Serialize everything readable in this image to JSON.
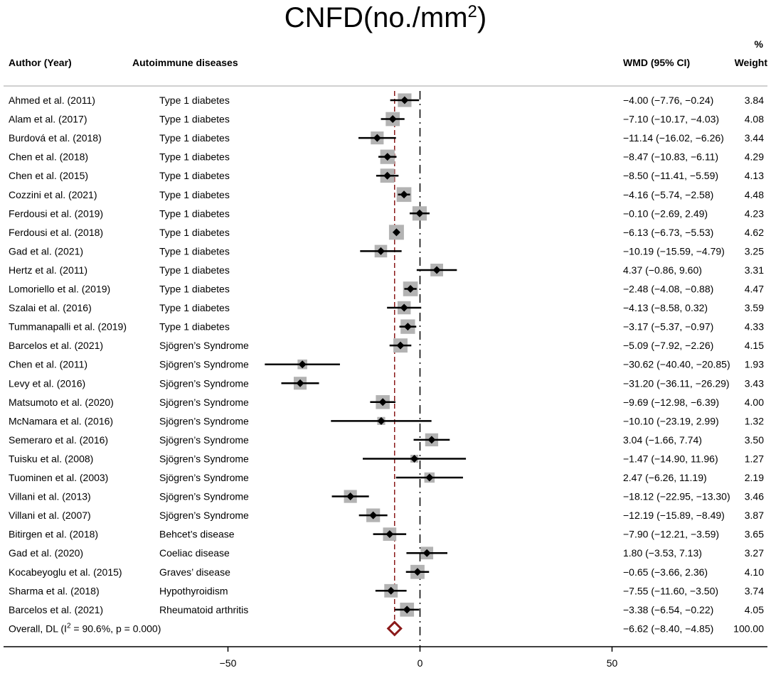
{
  "chart_data": {
    "type": "forest",
    "title_base": "CNFD(no./mm",
    "title_sup": "2",
    "title_end": ")",
    "columns": {
      "author": "Author (Year)",
      "disease": "Autoimmune diseases",
      "effect": "WMD (95% CI)",
      "weight_top": "%",
      "weight_bottom": "Weight"
    },
    "x_ticks": [
      {
        "value": -50,
        "label": "−50"
      },
      {
        "value": 0,
        "label": "0"
      },
      {
        "value": 50,
        "label": "50"
      }
    ],
    "null_line": 0,
    "studies": [
      {
        "author": "Ahmed et al. (2011)",
        "disease": "Type 1 diabetes",
        "est": -4.0,
        "lo": -7.76,
        "hi": -0.24,
        "ci_text": "−4.00 (−7.76, −0.24)",
        "weight": 3.84,
        "weight_text": "3.84"
      },
      {
        "author": "Alam et al. (2017)",
        "disease": "Type 1 diabetes",
        "est": -7.1,
        "lo": -10.17,
        "hi": -4.03,
        "ci_text": "−7.10 (−10.17, −4.03)",
        "weight": 4.08,
        "weight_text": "4.08"
      },
      {
        "author": "Burdová et al. (2018)",
        "disease": "Type 1 diabetes",
        "est": -11.14,
        "lo": -16.02,
        "hi": -6.26,
        "ci_text": "−11.14 (−16.02, −6.26)",
        "weight": 3.44,
        "weight_text": "3.44"
      },
      {
        "author": "Chen et al. (2018)",
        "disease": "Type 1 diabetes",
        "est": -8.47,
        "lo": -10.83,
        "hi": -6.11,
        "ci_text": "−8.47 (−10.83, −6.11)",
        "weight": 4.29,
        "weight_text": "4.29"
      },
      {
        "author": "Chen et al. (2015)",
        "disease": "Type 1 diabetes",
        "est": -8.5,
        "lo": -11.41,
        "hi": -5.59,
        "ci_text": "−8.50 (−11.41, −5.59)",
        "weight": 4.13,
        "weight_text": "4.13"
      },
      {
        "author": "Cozzini et al. (2021)",
        "disease": "Type 1 diabetes",
        "est": -4.16,
        "lo": -5.74,
        "hi": -2.58,
        "ci_text": "−4.16 (−5.74, −2.58)",
        "weight": 4.48,
        "weight_text": "4.48"
      },
      {
        "author": "Ferdousi et al. (2019)",
        "disease": "Type 1 diabetes",
        "est": -0.1,
        "lo": -2.69,
        "hi": 2.49,
        "ci_text": "−0.10 (−2.69, 2.49)",
        "weight": 4.23,
        "weight_text": "4.23"
      },
      {
        "author": "Ferdousi et al. (2018)",
        "disease": "Type 1 diabetes",
        "est": -6.13,
        "lo": -6.73,
        "hi": -5.53,
        "ci_text": "−6.13 (−6.73, −5.53)",
        "weight": 4.62,
        "weight_text": "4.62"
      },
      {
        "author": "Gad et al. (2021)",
        "disease": "Type 1 diabetes",
        "est": -10.19,
        "lo": -15.59,
        "hi": -4.79,
        "ci_text": "−10.19 (−15.59, −4.79)",
        "weight": 3.25,
        "weight_text": "3.25"
      },
      {
        "author": "Hertz et al. (2011)",
        "disease": "Type 1 diabetes",
        "est": 4.37,
        "lo": -0.86,
        "hi": 9.6,
        "ci_text": "4.37 (−0.86, 9.60)",
        "weight": 3.31,
        "weight_text": "3.31"
      },
      {
        "author": "Lomoriello et al. (2019)",
        "disease": "Type 1 diabetes",
        "est": -2.48,
        "lo": -4.08,
        "hi": -0.88,
        "ci_text": "−2.48 (−4.08, −0.88)",
        "weight": 4.47,
        "weight_text": "4.47"
      },
      {
        "author": "Szalai et al. (2016)",
        "disease": "Type 1 diabetes",
        "est": -4.13,
        "lo": -8.58,
        "hi": 0.32,
        "ci_text": "−4.13 (−8.58, 0.32)",
        "weight": 3.59,
        "weight_text": "3.59"
      },
      {
        "author": "Tummanapalli et al. (2019)",
        "disease": "Type 1 diabetes",
        "est": -3.17,
        "lo": -5.37,
        "hi": -0.97,
        "ci_text": "−3.17 (−5.37, −0.97)",
        "weight": 4.33,
        "weight_text": "4.33"
      },
      {
        "author": "Barcelos et al. (2021)",
        "disease": "Sjögren’s Syndrome",
        "est": -5.09,
        "lo": -7.92,
        "hi": -2.26,
        "ci_text": "−5.09 (−7.92, −2.26)",
        "weight": 4.15,
        "weight_text": "4.15"
      },
      {
        "author": "Chen et al. (2011)",
        "disease": "Sjögren’s Syndrome",
        "est": -30.62,
        "lo": -40.4,
        "hi": -20.85,
        "ci_text": "−30.62 (−40.40, −20.85)",
        "weight": 1.93,
        "weight_text": "1.93"
      },
      {
        "author": "Levy et al. (2016)",
        "disease": "Sjögren’s Syndrome",
        "est": -31.2,
        "lo": -36.11,
        "hi": -26.29,
        "ci_text": "−31.20 (−36.11, −26.29)",
        "weight": 3.43,
        "weight_text": "3.43"
      },
      {
        "author": "Matsumoto et al. (2020)",
        "disease": "Sjögren’s Syndrome",
        "est": -9.69,
        "lo": -12.98,
        "hi": -6.39,
        "ci_text": "−9.69 (−12.98, −6.39)",
        "weight": 4.0,
        "weight_text": "4.00"
      },
      {
        "author": "McNamara et al. (2016)",
        "disease": "Sjögren’s Syndrome",
        "est": -10.1,
        "lo": -23.19,
        "hi": 2.99,
        "ci_text": "−10.10 (−23.19, 2.99)",
        "weight": 1.32,
        "weight_text": "1.32"
      },
      {
        "author": "Semeraro et al. (2016)",
        "disease": "Sjögren’s Syndrome",
        "est": 3.04,
        "lo": -1.66,
        "hi": 7.74,
        "ci_text": "3.04 (−1.66, 7.74)",
        "weight": 3.5,
        "weight_text": "3.50"
      },
      {
        "author": "Tuisku et al. (2008)",
        "disease": "Sjögren’s Syndrome",
        "est": -1.47,
        "lo": -14.9,
        "hi": 11.96,
        "ci_text": "−1.47 (−14.90, 11.96)",
        "weight": 1.27,
        "weight_text": "1.27"
      },
      {
        "author": "Tuominen et al. (2003)",
        "disease": "Sjögren’s Syndrome",
        "est": 2.47,
        "lo": -6.26,
        "hi": 11.19,
        "ci_text": "2.47 (−6.26, 11.19)",
        "weight": 2.19,
        "weight_text": "2.19"
      },
      {
        "author": "Villani et al. (2013)",
        "disease": "Sjögren’s Syndrome",
        "est": -18.12,
        "lo": -22.95,
        "hi": -13.3,
        "ci_text": "−18.12 (−22.95, −13.30)",
        "weight": 3.46,
        "weight_text": "3.46"
      },
      {
        "author": "Villani et al. (2007)",
        "disease": "Sjögren’s Syndrome",
        "est": -12.19,
        "lo": -15.89,
        "hi": -8.49,
        "ci_text": "−12.19 (−15.89, −8.49)",
        "weight": 3.87,
        "weight_text": "3.87"
      },
      {
        "author": "Bitirgen et al. (2018)",
        "disease": "Behcet’s disease",
        "est": -7.9,
        "lo": -12.21,
        "hi": -3.59,
        "ci_text": "−7.90 (−12.21, −3.59)",
        "weight": 3.65,
        "weight_text": "3.65"
      },
      {
        "author": "Gad et al. (2020)",
        "disease": "Coeliac disease",
        "est": 1.8,
        "lo": -3.53,
        "hi": 7.13,
        "ci_text": "1.80 (−3.53, 7.13)",
        "weight": 3.27,
        "weight_text": "3.27"
      },
      {
        "author": "Kocabeyoglu et al. (2015)",
        "disease": "Graves’ disease",
        "est": -0.65,
        "lo": -3.66,
        "hi": 2.36,
        "ci_text": "−0.65 (−3.66, 2.36)",
        "weight": 4.1,
        "weight_text": "4.10"
      },
      {
        "author": "Sharma et al. (2018)",
        "disease": "Hypothyroidism",
        "est": -7.55,
        "lo": -11.6,
        "hi": -3.5,
        "ci_text": "−7.55 (−11.60, −3.50)",
        "weight": 3.74,
        "weight_text": "3.74"
      },
      {
        "author": "Barcelos et al. (2021)",
        "disease": "Rheumatoid arthritis",
        "est": -3.38,
        "lo": -6.54,
        "hi": -0.22,
        "ci_text": "−3.38 (−6.54, −0.22)",
        "weight": 4.05,
        "weight_text": "4.05"
      }
    ],
    "overall": {
      "label_start": "Overall, DL (I",
      "label_sup": "2",
      "label_end": " = 90.6%, p = 0.000)",
      "est": -6.62,
      "lo": -8.4,
      "hi": -4.85,
      "ci_text": "−6.62 (−8.40, −4.85)",
      "weight_text": "100.00"
    },
    "colors": {
      "overall_line": "#8B1A1A",
      "overall_diamond": "#8B1A1A",
      "weight_box": "#b3b3b3",
      "separator": "#c0c0c0"
    }
  }
}
